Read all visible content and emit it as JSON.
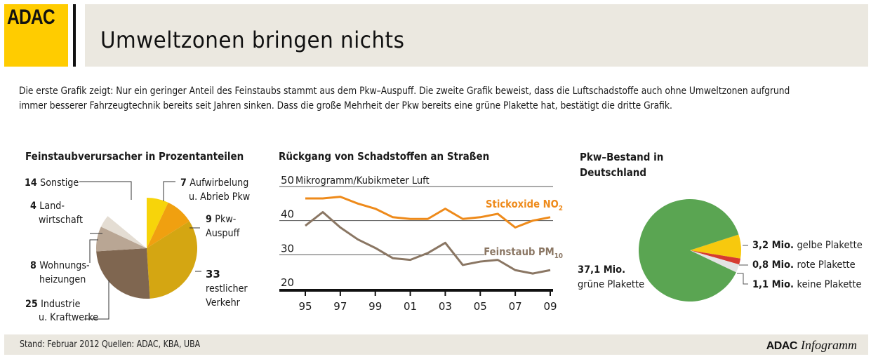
{
  "header": {
    "logo": "ADAC",
    "title": "Umweltzonen bringen nichts"
  },
  "intro": "Die erste Grafik zeigt: Nur ein geringer Anteil des Feinstaubs stammt aus dem Pkw–Auspuff. Die zweite Grafik beweist, dass die Luftschadstoffe auch ohne Umweltzonen aufgrund immer besserer Fahrzeugtechnik bereits seit Jahren sinken. Dass die große Mehrheit der Pkw bereits eine grüne Plakette hat, bestätigt die dritte Grafik.",
  "footer": {
    "source": "Stand: Februar 2012   Quellen: ADAC, KBA, UBA",
    "brand_bold": "ADAC",
    "brand_italic": "Infogramm"
  },
  "chart_data": [
    {
      "type": "pie",
      "title": "Feinstaubverursacher in Prozentanteilen",
      "unit": "%",
      "slices": [
        {
          "value": 7,
          "label": "Aufwirbelung",
          "label2": "u. Abrieb Pkw",
          "color": "#f7d40a"
        },
        {
          "value": 9,
          "label": "Pkw-",
          "label2": "Auspuff",
          "color": "#f0a010"
        },
        {
          "value": 33,
          "label": "",
          "label2": "restlicher",
          "label3": "Verkehr",
          "color": "#d4a612"
        },
        {
          "value": 25,
          "label": "Industrie",
          "label2": "u. Kraftwerke",
          "color": "#7f6650"
        },
        {
          "value": 8,
          "label": "Wohnungs-",
          "label2": "heizungen",
          "color": "#b9a694"
        },
        {
          "value": 4,
          "label": "Land-",
          "label2": "wirtschaft",
          "color": "#e4ddd3"
        },
        {
          "value": 14,
          "label": "Sonstige",
          "label2": "",
          "color": "#ffffff"
        }
      ]
    },
    {
      "type": "line",
      "title": "Rückgang von Schadstoffen an Straßen",
      "ylabel": "Mikrogramm/Kubikmeter Luft",
      "ylim": [
        20,
        50
      ],
      "yticks": [
        "50",
        "40",
        "30",
        "20"
      ],
      "yticks_values": [
        50,
        40,
        30,
        20
      ],
      "x": [
        1995,
        1996,
        1997,
        1998,
        1999,
        2000,
        2001,
        2002,
        2003,
        2004,
        2005,
        2006,
        2007,
        2008,
        2009
      ],
      "xtick_labels": [
        "95",
        "97",
        "99",
        "01",
        "03",
        "05",
        "07",
        "09"
      ],
      "xtick_values": [
        1995,
        1997,
        1999,
        2001,
        2003,
        2005,
        2007,
        2009
      ],
      "grid": true,
      "series": [
        {
          "name": "Stickoxide NO",
          "sub": "2",
          "color": "#ee8a1a",
          "values": [
            46.5,
            46.5,
            47,
            45,
            43.5,
            41,
            40.5,
            40.5,
            43.5,
            40.5,
            41,
            42,
            38,
            40,
            41
          ]
        },
        {
          "name": "Feinstaub PM",
          "sub": "10",
          "color": "#8a7663",
          "values": [
            38.5,
            42.5,
            38,
            34.5,
            32,
            29,
            28.5,
            30.5,
            33.5,
            27,
            28,
            28.5,
            25.5,
            24.5,
            25.5
          ]
        }
      ]
    },
    {
      "type": "pie",
      "title_line1": "Pkw–Bestand in",
      "title_line2": "Deutschland",
      "unit": "Mio.",
      "slices": [
        {
          "value": 3.2,
          "value_label": "3,2 Mio.",
          "label": "gelbe Plakette",
          "color": "#f7c90e"
        },
        {
          "value": 0.8,
          "value_label": "0,8 Mio.",
          "label": "rote Plakette",
          "color": "#d63b30"
        },
        {
          "value": 1.1,
          "value_label": "1,1 Mio.",
          "label": "keine Plakette",
          "color": "#e3e3e3"
        },
        {
          "value": 37.1,
          "value_label": "37,1 Mio.",
          "label": "grüne Plakette",
          "color": "#5aa552"
        }
      ]
    }
  ]
}
